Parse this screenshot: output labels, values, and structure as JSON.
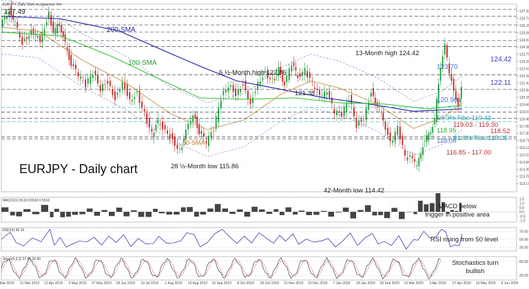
{
  "header": {
    "info": "EURJPY, Daily: Euro vs Japanese Yen"
  },
  "chart_data": {
    "type": "line",
    "title": "EURJPY - Daily chart",
    "main": {
      "ylim": [
        112.5,
        127.9
      ],
      "candles_series": [
        [
          0,
          126.0
        ],
        [
          12,
          127.5
        ],
        [
          20,
          126.3
        ],
        [
          30,
          124.8
        ],
        [
          42,
          125.7
        ],
        [
          54,
          124.9
        ],
        [
          66,
          127.2
        ],
        [
          72,
          125.4
        ],
        [
          80,
          126.4
        ],
        [
          88,
          124.6
        ],
        [
          96,
          123.0
        ],
        [
          106,
          122.0
        ],
        [
          116,
          121.2
        ],
        [
          126,
          122.3
        ],
        [
          136,
          121.0
        ],
        [
          146,
          121.6
        ],
        [
          156,
          120.2
        ],
        [
          166,
          121.6
        ],
        [
          176,
          120.1
        ],
        [
          186,
          120.6
        ],
        [
          196,
          118.9
        ],
        [
          206,
          117.2
        ],
        [
          214,
          118.2
        ],
        [
          224,
          117.7
        ],
        [
          234,
          116.8
        ],
        [
          244,
          115.9
        ],
        [
          252,
          117.4
        ],
        [
          262,
          119.0
        ],
        [
          270,
          117.4
        ],
        [
          280,
          116.5
        ],
        [
          290,
          117.6
        ],
        [
          300,
          120.2
        ],
        [
          310,
          121.3
        ],
        [
          320,
          120.6
        ],
        [
          330,
          121.4
        ],
        [
          340,
          119.8
        ],
        [
          350,
          121.5
        ],
        [
          360,
          122.3
        ],
        [
          370,
          121.6
        ],
        [
          378,
          122.5
        ],
        [
          386,
          121.4
        ],
        [
          396,
          122.9
        ],
        [
          404,
          122.0
        ],
        [
          414,
          122.4
        ],
        [
          424,
          121.3
        ],
        [
          434,
          120.3
        ],
        [
          444,
          120.6
        ],
        [
          454,
          119.0
        ],
        [
          464,
          118.8
        ],
        [
          474,
          120.2
        ],
        [
          484,
          118.0
        ],
        [
          494,
          118.6
        ],
        [
          504,
          120.8
        ],
        [
          512,
          119.6
        ],
        [
          520,
          118.5
        ],
        [
          530,
          116.4
        ],
        [
          540,
          117.7
        ],
        [
          550,
          115.3
        ],
        [
          560,
          115.2
        ],
        [
          566,
          114.42
        ],
        [
          574,
          116.4
        ],
        [
          582,
          117.2
        ],
        [
          590,
          118.4
        ],
        [
          598,
          122.9
        ],
        [
          604,
          124.42
        ],
        [
          610,
          122.1
        ],
        [
          616,
          121.0
        ],
        [
          622,
          119.6
        ],
        [
          626,
          120.9
        ]
      ],
      "sma100_series": [
        [
          0,
          125.6
        ],
        [
          80,
          125.3
        ],
        [
          150,
          123.6
        ],
        [
          220,
          121.6
        ],
        [
          270,
          120.2
        ],
        [
          330,
          120.1
        ],
        [
          400,
          120.2
        ],
        [
          460,
          119.8
        ],
        [
          520,
          119.7
        ],
        [
          580,
          119.3
        ],
        [
          626,
          119.6
        ]
      ],
      "sma50_series": [
        [
          0,
          126.0
        ],
        [
          50,
          125.7
        ],
        [
          110,
          123.3
        ],
        [
          170,
          121.4
        ],
        [
          230,
          118.9
        ],
        [
          280,
          117.6
        ],
        [
          330,
          118.4
        ],
        [
          380,
          120.5
        ],
        [
          420,
          121.6
        ],
        [
          460,
          121.0
        ],
        [
          510,
          119.7
        ],
        [
          560,
          117.7
        ],
        [
          600,
          118.6
        ],
        [
          626,
          119.8
        ]
      ],
      "sma200_series": [
        [
          0,
          126.9
        ],
        [
          80,
          126.7
        ],
        [
          160,
          125.7
        ],
        [
          220,
          124.1
        ],
        [
          270,
          122.8
        ],
        [
          320,
          121.6
        ],
        [
          380,
          120.9
        ],
        [
          440,
          120.2
        ],
        [
          500,
          119.7
        ],
        [
          560,
          119.1
        ],
        [
          626,
          119.3
        ]
      ],
      "levels": [
        "127.49",
        "124.42",
        "122.11",
        "120.90",
        "119.43",
        "119.03",
        "118.52",
        "118.25",
        "117.00",
        "116.85"
      ],
      "right_axis_ticks": [
        "127.920",
        "127.330",
        "126.740",
        "126.150",
        "125.560",
        "124.970",
        "124.380",
        "123.790",
        "123.200",
        "122.610",
        "122.020",
        "121.430",
        "120.840",
        "120.250",
        "119.660",
        "119.070",
        "118.480",
        "117.890",
        "117.300",
        "116.710",
        "116.120",
        "115.530",
        "114.940",
        "114.350",
        "113.760",
        "113.170"
      ],
      "annotations": {
        "sma200": "200-SMA",
        "sma100": "100-SMA",
        "sma50": "50-SMA",
        "high13m": "13-Month high 124.42",
        "high6m": "6 ½-Month high 122.86",
        "low28m": "28 ½-Month low 115.86",
        "low42m": "42-Month low 114.42",
        "top_left_price": "127.49",
        "p12138": "121.38",
        "p12370": "123.70",
        "p12442": "124.42",
        "p12211": "122.11",
        "p12090": "120.90",
        "fibo50": "50.0% Fibo 119.43",
        "p11903_11930": "119.03 - 119.30",
        "p11895": "118.95",
        "p11852": "118.52",
        "fibo618": "61.8% Fibo 118.25",
        "p11808": "118.08",
        "p11685_11700": "116.85 - 117.00"
      }
    },
    "macd": {
      "header": "MACD(12,26,9) 0.5516 0.5516",
      "ticks": [
        "1.5",
        "1.0",
        "0.5",
        "0.0",
        "-0.5",
        "-1.0"
      ],
      "annotation": [
        "MACD below",
        "trigger in positive area"
      ]
    },
    "rsi": {
      "header": "RSI(14) 56.16",
      "ticks": [
        "70.00",
        "50.00",
        "30.00"
      ],
      "annotation": [
        "RSI rising from 50 level"
      ]
    },
    "stoch": {
      "header": "Stoch(5,3,3) 37.61 20.00",
      "ticks": [
        "80.00",
        "20.00"
      ],
      "annotation": [
        "Stochastics turn",
        "bullish"
      ]
    },
    "x_axis": {
      "labels": [
        "7 Mar 2019",
        "21 Mar 2019",
        "11 Apr 2019",
        "3 May 2019",
        "27 May 2019",
        "18 Jun 2019",
        "10 Jul 2019",
        "1 Aug 2019",
        "23 Aug 2019",
        "16 Sep 2019",
        "8 Oct 2019",
        "30 Oct 2019",
        "21 Nov 2019",
        "13 Dec 2019",
        "7 Jan 2020",
        "29 Jan 2020",
        "20 Feb 2020",
        "13 Mar 2020",
        "3 Apr 2020",
        "27 Apr 2020",
        "19 May 2020",
        "9 Jun 2020"
      ]
    }
  }
}
